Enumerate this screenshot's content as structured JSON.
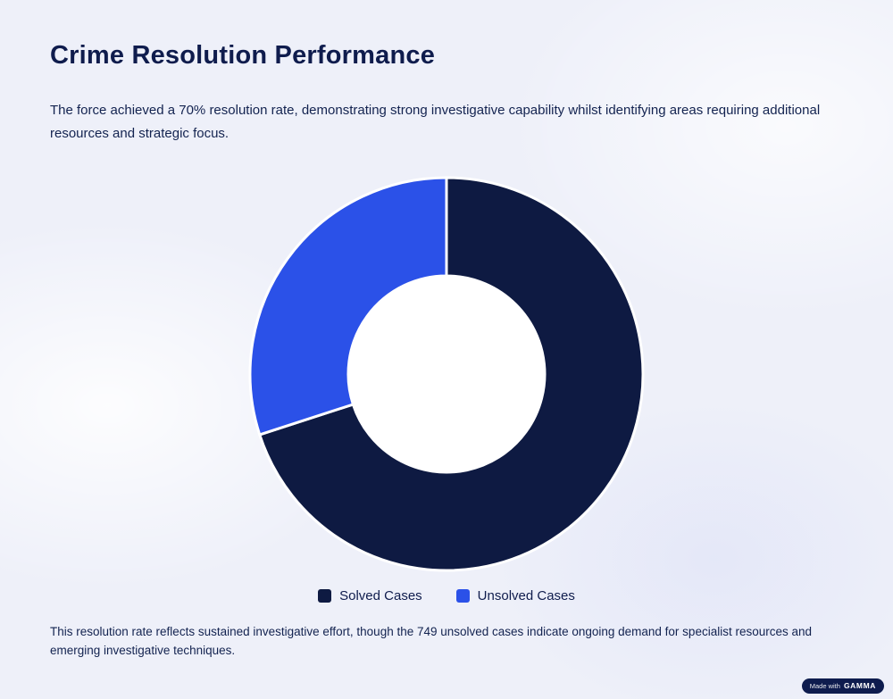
{
  "page": {
    "title": "Crime Resolution Performance",
    "intro": "The force achieved a 70% resolution rate, demonstrating strong investigative capability whilst identifying areas requiring additional resources and strategic focus.",
    "footer": "This resolution rate reflects sustained investigative effort, though the 749 unsolved cases indicate ongoing demand for specialist resources and emerging investigative techniques."
  },
  "badge": {
    "prefix": "Made with",
    "brand": "GAMMA"
  },
  "chart_data": {
    "type": "pie",
    "subtype": "donut",
    "title": "Crime Resolution Performance",
    "categories": [
      "Solved Cases",
      "Unsolved Cases"
    ],
    "values": [
      70,
      30
    ],
    "unit": "percent",
    "colors": [
      "#0e1a42",
      "#2b51e8"
    ],
    "hole_fill": "#ffffff",
    "start_angle_deg": 0,
    "direction": "clockwise",
    "inner_radius_ratio": 0.5,
    "legend_position": "bottom",
    "segment_gap_color": "#ffffff"
  }
}
